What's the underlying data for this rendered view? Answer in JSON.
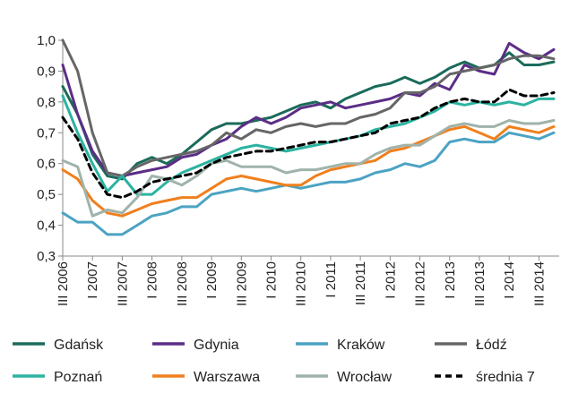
{
  "chart_data": {
    "type": "line",
    "title": "",
    "xlabel": "",
    "ylabel": "",
    "ylim": [
      0.3,
      1.0
    ],
    "yticks": [
      "1,0",
      "0,9",
      "0,8",
      "0,7",
      "0,6",
      "0,5",
      "0,4",
      "0,3"
    ],
    "grid": false,
    "legend_placement": "bottom",
    "x": [
      "III 2006",
      "IV 2006",
      "I 2007",
      "II 2007",
      "III 2007",
      "IV 2007",
      "I 2008",
      "II 2008",
      "III 2008",
      "IV 2008",
      "I 2009",
      "II 2009",
      "III 2009",
      "IV 2009",
      "I 2010",
      "II 2010",
      "III 2010",
      "IV 2010",
      "I 2011",
      "II 2011",
      "III 2011",
      "IV 2011",
      "I 2012",
      "II 2012",
      "III 2012",
      "IV 2012",
      "I 2013",
      "II 2013",
      "III 2013",
      "IV 2013",
      "I 2014",
      "II 2014",
      "III 2014",
      "IV 2014"
    ],
    "x_tick_labels": [
      "III 2006",
      "I 2007",
      "III 2007",
      "I 2008",
      "III 2008",
      "I 2009",
      "III 2009",
      "I 2010",
      "III 2010",
      "I 2011",
      "III 2011",
      "I 2012",
      "III 2012",
      "I 2013",
      "III 2013",
      "I 2014",
      "III 2014"
    ],
    "series": [
      {
        "name": "Gdańsk",
        "color": "#1a6b5a",
        "dashed": false,
        "values": [
          0.85,
          0.76,
          0.63,
          0.56,
          0.55,
          0.6,
          0.62,
          0.6,
          0.63,
          0.67,
          0.71,
          0.73,
          0.73,
          0.74,
          0.75,
          0.77,
          0.79,
          0.8,
          0.78,
          0.81,
          0.83,
          0.85,
          0.86,
          0.88,
          0.86,
          0.88,
          0.91,
          0.93,
          0.91,
          0.92,
          0.96,
          0.92,
          0.92,
          0.93
        ]
      },
      {
        "name": "Gdynia",
        "color": "#5b2d86",
        "dashed": false,
        "values": [
          0.92,
          0.76,
          0.64,
          0.57,
          0.56,
          0.57,
          0.58,
          0.59,
          0.62,
          0.63,
          0.66,
          0.68,
          0.72,
          0.75,
          0.73,
          0.75,
          0.78,
          0.79,
          0.8,
          0.78,
          0.79,
          0.8,
          0.81,
          0.83,
          0.82,
          0.86,
          0.84,
          0.92,
          0.9,
          0.89,
          0.99,
          0.96,
          0.94,
          0.97
        ]
      },
      {
        "name": "Kraków",
        "color": "#4ba3c3",
        "dashed": false,
        "values": [
          0.44,
          0.41,
          0.41,
          0.37,
          0.37,
          0.4,
          0.43,
          0.44,
          0.46,
          0.46,
          0.5,
          0.51,
          0.52,
          0.51,
          0.52,
          0.53,
          0.52,
          0.53,
          0.54,
          0.54,
          0.55,
          0.57,
          0.58,
          0.6,
          0.59,
          0.61,
          0.67,
          0.68,
          0.67,
          0.67,
          0.7,
          0.69,
          0.68,
          0.7
        ]
      },
      {
        "name": "Łódź",
        "color": "#666666",
        "dashed": false,
        "values": [
          1.0,
          0.9,
          0.7,
          0.57,
          0.56,
          0.59,
          0.61,
          0.62,
          0.63,
          0.64,
          0.66,
          0.7,
          0.68,
          0.71,
          0.7,
          0.72,
          0.73,
          0.72,
          0.73,
          0.73,
          0.75,
          0.76,
          0.78,
          0.83,
          0.83,
          0.85,
          0.89,
          0.9,
          0.91,
          0.92,
          0.94,
          0.95,
          0.95,
          0.94
        ]
      },
      {
        "name": "Poznań",
        "color": "#2bb3a0",
        "dashed": false,
        "values": [
          0.82,
          0.7,
          0.6,
          0.51,
          0.56,
          0.5,
          0.5,
          0.54,
          0.57,
          0.59,
          0.61,
          0.63,
          0.65,
          0.66,
          0.65,
          0.64,
          0.65,
          0.66,
          0.67,
          0.68,
          0.69,
          0.71,
          0.72,
          0.73,
          0.75,
          0.77,
          0.8,
          0.79,
          0.8,
          0.79,
          0.8,
          0.79,
          0.81,
          0.81
        ]
      },
      {
        "name": "Warszawa",
        "color": "#f07f1d",
        "dashed": false,
        "values": [
          0.58,
          0.55,
          0.48,
          0.44,
          0.43,
          0.45,
          0.47,
          0.48,
          0.49,
          0.49,
          0.52,
          0.55,
          0.56,
          0.55,
          0.54,
          0.53,
          0.53,
          0.56,
          0.58,
          0.59,
          0.6,
          0.61,
          0.64,
          0.65,
          0.67,
          0.69,
          0.71,
          0.72,
          0.7,
          0.68,
          0.72,
          0.71,
          0.7,
          0.72
        ]
      },
      {
        "name": "Wrocław",
        "color": "#9fb3aa",
        "dashed": false,
        "values": [
          0.61,
          0.59,
          0.43,
          0.45,
          0.44,
          0.49,
          0.56,
          0.55,
          0.53,
          0.56,
          0.6,
          0.61,
          0.59,
          0.59,
          0.59,
          0.57,
          0.58,
          0.58,
          0.59,
          0.6,
          0.6,
          0.63,
          0.65,
          0.66,
          0.66,
          0.69,
          0.72,
          0.73,
          0.72,
          0.72,
          0.74,
          0.73,
          0.73,
          0.74
        ]
      },
      {
        "name": "średnia 7",
        "color": "#000000",
        "dashed": true,
        "values": [
          0.75,
          0.68,
          0.57,
          0.5,
          0.49,
          0.51,
          0.54,
          0.55,
          0.56,
          0.57,
          0.6,
          0.62,
          0.63,
          0.64,
          0.64,
          0.65,
          0.66,
          0.67,
          0.67,
          0.68,
          0.69,
          0.7,
          0.73,
          0.74,
          0.75,
          0.78,
          0.8,
          0.81,
          0.8,
          0.8,
          0.84,
          0.82,
          0.82,
          0.83
        ]
      }
    ]
  }
}
